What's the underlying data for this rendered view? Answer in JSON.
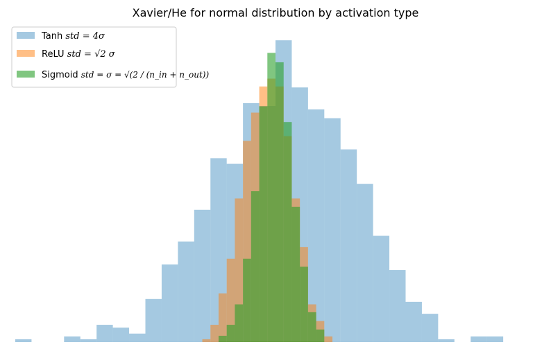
{
  "chart_data": {
    "type": "bar",
    "title": "Xavier/He for normal distribution by activation type",
    "xlabel": "",
    "ylabel": "",
    "axes_visible": false,
    "grid": false,
    "legend_position": "top-left",
    "xlim": [
      -1.6,
      1.6
    ],
    "ylim": [
      0,
      1.0
    ],
    "series": [
      {
        "name": "Tanh",
        "legend_label": "Tanh",
        "legend_math": "std = 4σ",
        "color": "#1f77b4",
        "alpha": 0.4,
        "bin_edges": [
          -1.6,
          -1.5,
          -1.4,
          -1.3,
          -1.2,
          -1.1,
          -1.0,
          -0.9,
          -0.8,
          -0.7,
          -0.6,
          -0.5,
          -0.4,
          -0.3,
          -0.2,
          -0.1,
          0.0,
          0.1,
          0.2,
          0.3,
          0.4,
          0.5,
          0.6,
          0.7,
          0.8,
          0.9,
          1.0,
          1.1,
          1.2,
          1.3,
          1.4,
          1.5,
          1.6
        ],
        "values": [
          0.009,
          0.0,
          0.0,
          0.018,
          0.009,
          0.055,
          0.046,
          0.027,
          0.137,
          0.247,
          0.32,
          0.421,
          0.585,
          0.567,
          0.76,
          0.751,
          0.96,
          0.81,
          0.74,
          0.712,
          0.613,
          0.503,
          0.338,
          0.229,
          0.128,
          0.09,
          0.009,
          0.0,
          0.018,
          0.018,
          0.0,
          0.0
        ]
      },
      {
        "name": "ReLU",
        "legend_label": "ReLU",
        "legend_math": "std = √2 σ",
        "color": "#ff7f0e",
        "alpha": 0.5,
        "bin_edges": [
          -0.45,
          -0.4,
          -0.35,
          -0.3,
          -0.25,
          -0.2,
          -0.15,
          -0.1,
          -0.05,
          0.0,
          0.05,
          0.1,
          0.15,
          0.2,
          0.25,
          0.3,
          0.35,
          0.4,
          0.45,
          0.5
        ],
        "values": [
          0.009,
          0.055,
          0.155,
          0.265,
          0.457,
          0.64,
          0.73,
          0.813,
          0.838,
          0.813,
          0.655,
          0.457,
          0.302,
          0.12,
          0.067,
          0.018,
          0.0,
          0.0,
          0.0
        ]
      },
      {
        "name": "Sigmoid",
        "legend_label": "Sigmoid",
        "legend_math": "std = σ = √(2 / (n_in + n_out))",
        "color": "#2ca02c",
        "alpha": 0.6,
        "bin_edges": [
          -0.35,
          -0.3,
          -0.25,
          -0.2,
          -0.15,
          -0.1,
          -0.05,
          0.0,
          0.05,
          0.1,
          0.15,
          0.2,
          0.25,
          0.3,
          0.35
        ],
        "values": [
          0.02,
          0.055,
          0.12,
          0.265,
          0.48,
          0.75,
          0.92,
          0.89,
          0.7,
          0.43,
          0.24,
          0.095,
          0.04,
          0.0
        ]
      }
    ]
  }
}
